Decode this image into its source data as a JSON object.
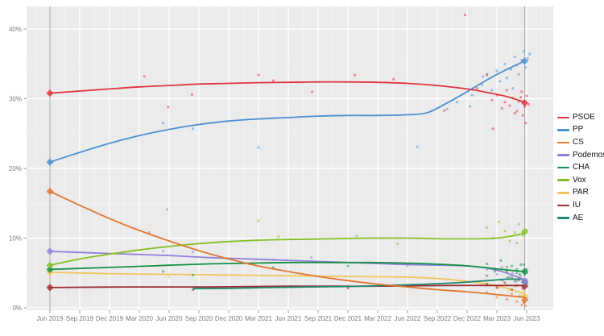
{
  "chart_data": {
    "type": "line",
    "description_visible_text_only": true,
    "x_ticks": [
      "Jun 2019",
      "Sep 2019",
      "Dec 2019",
      "Mar 2020",
      "Jun 2020",
      "Sep 2020",
      "Dec 2020",
      "Mar 2021",
      "Jun 2021",
      "Sep 2021",
      "Dec 2021",
      "Mar 2022",
      "Jun 2022",
      "Sep 2022",
      "Dec 2022",
      "Mar 2023",
      "Jun 2023"
    ],
    "y_ticks": [
      {
        "label": "0%",
        "value": 0
      },
      {
        "label": "10%",
        "value": 10
      },
      {
        "label": "20%",
        "value": 20
      },
      {
        "label": "30%",
        "value": 30
      },
      {
        "label": "40%",
        "value": 40
      }
    ],
    "axis_text_color": "#7a7a7a",
    "panel_bg": "#ebebeb",
    "grid_color": "#ffffff",
    "election_line_color": "#a9a9a9",
    "election_lines_months": [
      0,
      47.8
    ],
    "legend_position": "right",
    "draw_order": [
      "PAR",
      "IU",
      "AE",
      "Podemos",
      "CHA",
      "Vox",
      "CS",
      "PP",
      "PSOE"
    ],
    "series": [
      {
        "name": "PSOE",
        "color": "#e0353f",
        "trend": [
          [
            0,
            30.8
          ],
          [
            3,
            31.1
          ],
          [
            6,
            31.4
          ],
          [
            9,
            31.7
          ],
          [
            12,
            31.9
          ],
          [
            15,
            32.1
          ],
          [
            18,
            32.2
          ],
          [
            21,
            32.3
          ],
          [
            24,
            32.35
          ],
          [
            27,
            32.4
          ],
          [
            30,
            32.4
          ],
          [
            33,
            32.35
          ],
          [
            36,
            32.2
          ],
          [
            39,
            31.9
          ],
          [
            42,
            31.4
          ],
          [
            44,
            30.9
          ],
          [
            46,
            30.3
          ],
          [
            47.8,
            29.5
          ]
        ],
        "results": [
          [
            0,
            30.8
          ],
          [
            47.8,
            29.4
          ]
        ],
        "points": [
          [
            9.5,
            33.2
          ],
          [
            11.9,
            28.8
          ],
          [
            14.3,
            30.6
          ],
          [
            21,
            33.4
          ],
          [
            22.5,
            32.6
          ],
          [
            26.4,
            31.0
          ],
          [
            30.7,
            33.4
          ],
          [
            34.6,
            32.8
          ],
          [
            39.7,
            28.3
          ],
          [
            41.8,
            42.0
          ],
          [
            43,
            31.5
          ],
          [
            44,
            33.4
          ],
          [
            44.5,
            29.8
          ],
          [
            44.6,
            25.7
          ],
          [
            45,
            30.5
          ],
          [
            45.5,
            28.6
          ],
          [
            45.8,
            29.5
          ],
          [
            46,
            31.2
          ],
          [
            46.3,
            29.0
          ],
          [
            46.6,
            30.1
          ],
          [
            46.8,
            27.9
          ],
          [
            47,
            28.2
          ],
          [
            47.2,
            29.6
          ],
          [
            47.4,
            30.2
          ],
          [
            47.5,
            31.0
          ],
          [
            47.6,
            27.6
          ],
          [
            47.8,
            28.9
          ],
          [
            47.9,
            26.5
          ],
          [
            48,
            30.4
          ],
          [
            48.2,
            29.2
          ]
        ]
      },
      {
        "name": "PP",
        "color": "#4a90d2",
        "trend": [
          [
            0,
            20.9
          ],
          [
            3,
            22.3
          ],
          [
            6,
            23.6
          ],
          [
            9,
            24.7
          ],
          [
            12,
            25.6
          ],
          [
            15,
            26.3
          ],
          [
            18,
            26.8
          ],
          [
            21,
            27.1
          ],
          [
            24,
            27.3
          ],
          [
            27,
            27.5
          ],
          [
            30,
            27.6
          ],
          [
            33,
            27.6
          ],
          [
            36,
            27.7
          ],
          [
            38,
            28.0
          ],
          [
            40,
            29.4
          ],
          [
            42,
            31.0
          ],
          [
            44,
            32.7
          ],
          [
            46,
            34.2
          ],
          [
            47.8,
            35.4
          ]
        ],
        "results": [
          [
            0,
            20.9
          ],
          [
            47.8,
            35.4
          ]
        ],
        "points": [
          [
            11.4,
            26.5
          ],
          [
            14.4,
            25.7
          ],
          [
            21,
            23.0
          ],
          [
            37,
            23.1
          ],
          [
            40,
            28.5
          ],
          [
            41,
            29.5
          ],
          [
            42.3,
            28.9
          ],
          [
            42.5,
            30.5
          ],
          [
            43.5,
            32.0
          ],
          [
            43.6,
            33.2
          ],
          [
            44,
            33.5
          ],
          [
            44.5,
            31.2
          ],
          [
            45,
            34.0
          ],
          [
            45.3,
            32.5
          ],
          [
            45.8,
            35.0
          ],
          [
            46,
            33.0
          ],
          [
            46.4,
            34.2
          ],
          [
            46.6,
            31.5
          ],
          [
            46.8,
            36.0
          ],
          [
            47,
            34.8
          ],
          [
            47.2,
            33.5
          ],
          [
            47.5,
            35.5
          ],
          [
            47.7,
            36.8
          ],
          [
            47.9,
            34.5
          ],
          [
            48.1,
            35.8
          ],
          [
            48.3,
            36.4
          ]
        ]
      },
      {
        "name": "CS",
        "color": "#e0762f",
        "trend": [
          [
            0,
            16.7
          ],
          [
            3,
            14.7
          ],
          [
            6,
            12.8
          ],
          [
            9,
            11.1
          ],
          [
            12,
            9.6
          ],
          [
            15,
            8.2
          ],
          [
            18,
            7.0
          ],
          [
            21,
            6.0
          ],
          [
            24,
            5.2
          ],
          [
            27,
            4.5
          ],
          [
            30,
            3.9
          ],
          [
            33,
            3.4
          ],
          [
            36,
            3.0
          ],
          [
            39,
            2.6
          ],
          [
            42,
            2.3
          ],
          [
            45,
            1.9
          ],
          [
            47.8,
            1.5
          ]
        ],
        "results": [
          [
            0,
            16.7
          ],
          [
            47.8,
            1.1
          ]
        ],
        "points": [
          [
            10,
            10.8
          ],
          [
            20,
            6.3
          ],
          [
            44,
            2.2
          ],
          [
            45,
            1.5
          ],
          [
            46,
            1.2
          ],
          [
            46.5,
            2.0
          ],
          [
            47,
            0.9
          ],
          [
            47.3,
            1.6
          ],
          [
            47.5,
            0.4
          ],
          [
            47.7,
            0.7
          ],
          [
            47.9,
            0.3
          ],
          [
            48,
            1.3
          ]
        ]
      },
      {
        "name": "Podemos",
        "color": "#9180dd",
        "trend": [
          [
            0,
            8.1
          ],
          [
            4,
            7.9
          ],
          [
            8,
            7.7
          ],
          [
            12,
            7.5
          ],
          [
            16,
            7.2
          ],
          [
            20,
            7.0
          ],
          [
            24,
            6.8
          ],
          [
            28,
            6.6
          ],
          [
            32,
            6.4
          ],
          [
            36,
            6.2
          ],
          [
            40,
            6.1
          ],
          [
            42,
            6.0
          ],
          [
            44,
            5.7
          ],
          [
            46,
            5.0
          ],
          [
            47.8,
            4.0
          ]
        ],
        "results": [
          [
            0,
            8.1
          ],
          [
            47.8,
            3.8
          ]
        ],
        "points": [
          [
            11.4,
            8.1
          ],
          [
            14.4,
            8.0
          ],
          [
            22.5,
            6.9
          ],
          [
            26.3,
            7.2
          ],
          [
            36,
            6.0
          ],
          [
            44,
            5.5
          ],
          [
            45,
            4.8
          ],
          [
            45.5,
            5.8
          ],
          [
            46,
            4.3
          ],
          [
            46.6,
            5.0
          ],
          [
            47,
            3.8
          ],
          [
            47.4,
            4.5
          ],
          [
            47.8,
            3.4
          ],
          [
            48,
            4.1
          ]
        ]
      },
      {
        "name": "CHA",
        "color": "#149146",
        "trend": [
          [
            0,
            5.5
          ],
          [
            4,
            5.7
          ],
          [
            8,
            5.9
          ],
          [
            12,
            6.1
          ],
          [
            16,
            6.3
          ],
          [
            20,
            6.4
          ],
          [
            24,
            6.5
          ],
          [
            28,
            6.5
          ],
          [
            32,
            6.5
          ],
          [
            36,
            6.4
          ],
          [
            40,
            6.2
          ],
          [
            43,
            5.9
          ],
          [
            45.5,
            5.5
          ],
          [
            47.8,
            5.2
          ]
        ],
        "results": [
          [
            0,
            5.5
          ],
          [
            47.8,
            5.2
          ]
        ],
        "points": [
          [
            11.4,
            5.2
          ],
          [
            14.4,
            4.7
          ],
          [
            22.5,
            5.8
          ],
          [
            30,
            6.0
          ],
          [
            44,
            6.3
          ],
          [
            44.8,
            5.6
          ],
          [
            45.4,
            6.8
          ],
          [
            46,
            5.2
          ],
          [
            46.2,
            4.4
          ],
          [
            46.5,
            6.0
          ],
          [
            47,
            5.5
          ],
          [
            47.3,
            4.8
          ],
          [
            47.7,
            6.2
          ],
          [
            48,
            5.0
          ]
        ]
      },
      {
        "name": "Vox",
        "color": "#84c021",
        "trend": [
          [
            0,
            6.1
          ],
          [
            3,
            7.0
          ],
          [
            6,
            7.7
          ],
          [
            9,
            8.3
          ],
          [
            12,
            8.8
          ],
          [
            15,
            9.2
          ],
          [
            18,
            9.5
          ],
          [
            21,
            9.7
          ],
          [
            24,
            9.8
          ],
          [
            28,
            9.9
          ],
          [
            32,
            10.0
          ],
          [
            36,
            10.0
          ],
          [
            40,
            9.9
          ],
          [
            43,
            9.9
          ],
          [
            45,
            10.0
          ],
          [
            46.5,
            10.3
          ],
          [
            47.8,
            10.7
          ]
        ],
        "results": [
          [
            0,
            6.1
          ],
          [
            47.8,
            10.9
          ]
        ],
        "points": [
          [
            11.8,
            14.1
          ],
          [
            21,
            12.5
          ],
          [
            23,
            10.2
          ],
          [
            30.9,
            10.3
          ],
          [
            35,
            9.2
          ],
          [
            44,
            11.5
          ],
          [
            44.6,
            10.0
          ],
          [
            45.2,
            12.3
          ],
          [
            45.8,
            11.0
          ],
          [
            46.3,
            9.6
          ],
          [
            46.8,
            10.8
          ],
          [
            47,
            9.3
          ],
          [
            47.2,
            12.0
          ],
          [
            47.6,
            10.4
          ],
          [
            48,
            11.2
          ]
        ]
      },
      {
        "name": "PAR",
        "color": "#f2c55c",
        "trend": [
          [
            0,
            5.1
          ],
          [
            6,
            4.9
          ],
          [
            12,
            4.8
          ],
          [
            18,
            4.7
          ],
          [
            24,
            4.6
          ],
          [
            30,
            4.5
          ],
          [
            36,
            4.4
          ],
          [
            39,
            4.2
          ],
          [
            42,
            3.8
          ],
          [
            44,
            3.4
          ],
          [
            46,
            2.8
          ],
          [
            47.8,
            2.0
          ]
        ],
        "results": [
          [
            0,
            5.1
          ],
          [
            47.8,
            1.7
          ]
        ],
        "points": [
          [
            12,
            4.4
          ],
          [
            44,
            3.5
          ],
          [
            45,
            2.8
          ],
          [
            45.6,
            3.8
          ],
          [
            46.2,
            2.4
          ],
          [
            46.5,
            4.1
          ],
          [
            46.8,
            3.0
          ],
          [
            47.3,
            1.8
          ],
          [
            47.7,
            2.5
          ],
          [
            48,
            1.5
          ]
        ]
      },
      {
        "name": "IU",
        "color": "#9c2b33",
        "trend": [
          [
            0,
            2.9
          ],
          [
            8,
            3.0
          ],
          [
            16,
            3.0
          ],
          [
            24,
            3.1
          ],
          [
            32,
            3.1
          ],
          [
            40,
            3.2
          ],
          [
            44,
            3.2
          ],
          [
            47.8,
            3.2
          ]
        ],
        "results": [
          [
            0,
            2.9
          ],
          [
            47.8,
            3.1
          ]
        ],
        "points": [
          [
            14.4,
            2.6
          ],
          [
            22.5,
            3.0
          ],
          [
            30,
            2.8
          ],
          [
            44,
            3.4
          ],
          [
            45,
            2.9
          ],
          [
            45.8,
            3.6
          ],
          [
            46.5,
            2.6
          ],
          [
            47,
            3.2
          ],
          [
            47.2,
            4.0
          ],
          [
            47.6,
            2.8
          ],
          [
            48,
            3.4
          ]
        ]
      },
      {
        "name": "AE",
        "color": "#1f8a70",
        "trend": [
          [
            14.5,
            2.75
          ],
          [
            18,
            2.8
          ],
          [
            22,
            2.9
          ],
          [
            26,
            3.0
          ],
          [
            30,
            3.05
          ],
          [
            34,
            3.2
          ],
          [
            38,
            3.4
          ],
          [
            41,
            3.6
          ],
          [
            44,
            3.9
          ],
          [
            46,
            4.1
          ],
          [
            47.8,
            4.1
          ]
        ],
        "results": [
          [
            47.8,
            3.7
          ]
        ],
        "points": [
          [
            14.5,
            2.75
          ],
          [
            20,
            2.9
          ],
          [
            30,
            3.1
          ],
          [
            44,
            4.6
          ],
          [
            44.8,
            5.2
          ],
          [
            45.5,
            4.0
          ],
          [
            46,
            5.8
          ],
          [
            46.5,
            4.4
          ],
          [
            46.8,
            3.8
          ],
          [
            47,
            5.0
          ],
          [
            47.4,
            6.2
          ],
          [
            47.8,
            4.8
          ],
          [
            48,
            5.5
          ]
        ]
      }
    ]
  },
  "legend": {
    "entries": [
      "PSOE",
      "PP",
      "CS",
      "Podemos",
      "CHA",
      "Vox",
      "PAR",
      "IU",
      "AE"
    ]
  }
}
